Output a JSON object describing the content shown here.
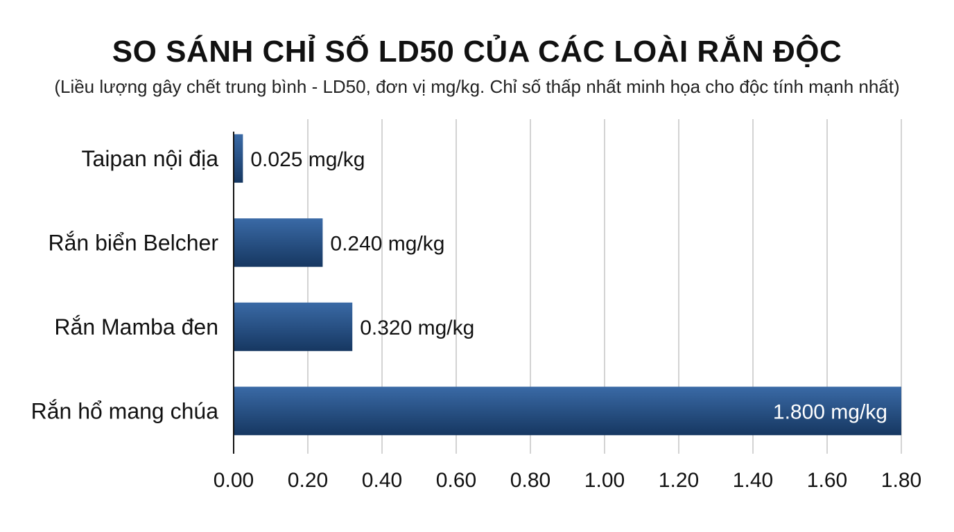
{
  "chart_data": {
    "type": "bar",
    "orientation": "horizontal",
    "title": "SO SÁNH CHỈ SỐ LD50 CỦA CÁC LOÀI RẮN ĐỘC",
    "subtitle": "(Liều lượng gây chết trung bình - LD50, đơn vị mg/kg. Chỉ số thấp nhất minh họa cho độc tính mạnh nhất)",
    "categories": [
      "Taipan nội địa",
      "Rắn biển Belcher",
      "Rắn Mamba đen",
      "Rắn hổ mang chúa"
    ],
    "values": [
      0.025,
      0.24,
      0.32,
      1.8
    ],
    "data_labels": [
      "0.025 mg/kg",
      "0.240 mg/kg",
      "0.320 mg/kg",
      "1.800 mg/kg"
    ],
    "xlim": [
      0,
      1.8
    ],
    "x_ticks": [
      "0.00",
      "0.20",
      "0.40",
      "0.60",
      "0.80",
      "1.00",
      "1.20",
      "1.40",
      "1.60",
      "1.80"
    ],
    "xlabel": "",
    "ylabel": "",
    "grid": "vertical",
    "legend": "none",
    "colors": {
      "bar_top": "#3a6aa6",
      "bar_bottom": "#163761",
      "grid": "#d3d3d3",
      "axis": "#111111",
      "label_outside": "#111111",
      "label_inside": "#ffffff"
    }
  }
}
